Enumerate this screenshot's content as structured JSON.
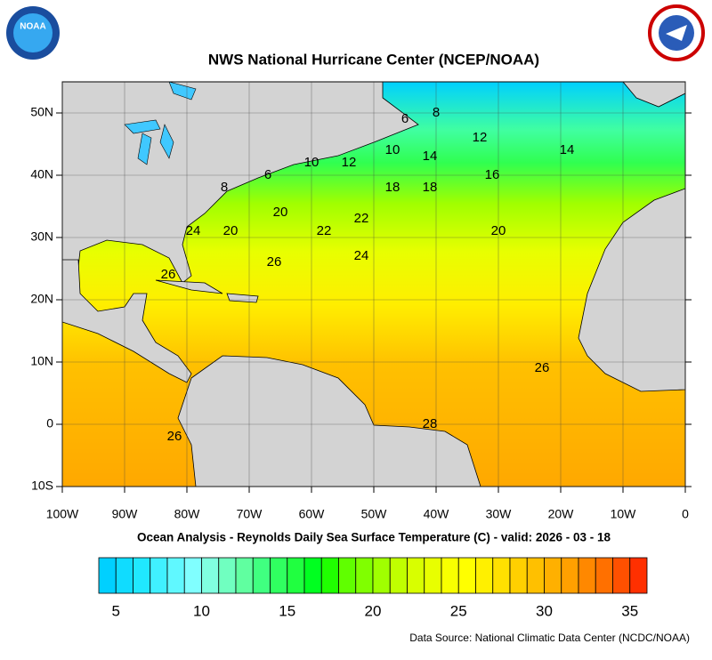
{
  "title": "NWS National Hurricane Center (NCEP/NOAA)",
  "logo_text": "NOAA",
  "map": {
    "lonlim": [
      -100,
      0
    ],
    "latlim": [
      -10,
      55
    ],
    "xticks": [
      {
        "value": -100,
        "label": "100W"
      },
      {
        "value": -90,
        "label": "90W"
      },
      {
        "value": -80,
        "label": "80W"
      },
      {
        "value": -70,
        "label": "70W"
      },
      {
        "value": -60,
        "label": "60W"
      },
      {
        "value": -50,
        "label": "50W"
      },
      {
        "value": -40,
        "label": "40W"
      },
      {
        "value": -30,
        "label": "30W"
      },
      {
        "value": -20,
        "label": "20W"
      },
      {
        "value": -10,
        "label": "10W"
      },
      0
    ],
    "yticks": [
      {
        "value": 50,
        "label": "50N"
      },
      {
        "value": 40,
        "label": "40N"
      },
      {
        "value": 30,
        "label": "30N"
      },
      {
        "value": 20,
        "label": "20N"
      },
      {
        "value": 10,
        "label": "10N"
      },
      0,
      {
        "value": -10,
        "label": "10S"
      }
    ],
    "grid": true,
    "contour_labels": [
      {
        "value": 6,
        "lon": -45,
        "lat": 49
      },
      {
        "value": 8,
        "lon": -40,
        "lat": 50
      },
      {
        "value": 12,
        "lon": -33,
        "lat": 46
      },
      {
        "value": 14,
        "lon": -19,
        "lat": 44
      },
      {
        "value": 10,
        "lon": -60,
        "lat": 42
      },
      {
        "value": 12,
        "lon": -54,
        "lat": 42
      },
      {
        "value": 10,
        "lon": -47,
        "lat": 44
      },
      {
        "value": 14,
        "lon": -41,
        "lat": 43
      },
      {
        "value": 16,
        "lon": -31,
        "lat": 40
      },
      {
        "value": 18,
        "lon": -47,
        "lat": 38
      },
      {
        "value": 18,
        "lon": -41,
        "lat": 38
      },
      {
        "value": 8,
        "lon": -74,
        "lat": 38
      },
      {
        "value": 6,
        "lon": -67,
        "lat": 40
      },
      {
        "value": 20,
        "lon": -65,
        "lat": 34
      },
      {
        "value": 22,
        "lon": -52,
        "lat": 33
      },
      {
        "value": 22,
        "lon": -58,
        "lat": 31
      },
      {
        "value": 20,
        "lon": -73,
        "lat": 31
      },
      {
        "value": 24,
        "lon": -79,
        "lat": 31
      },
      {
        "value": 20,
        "lon": -30,
        "lat": 31
      },
      {
        "value": 24,
        "lon": -52,
        "lat": 27
      },
      {
        "value": 26,
        "lon": -66,
        "lat": 26
      },
      {
        "value": 26,
        "lon": -83,
        "lat": 24
      },
      {
        "value": 26,
        "lon": -23,
        "lat": 9
      },
      {
        "value": 28,
        "lon": -41,
        "lat": 0
      },
      {
        "value": 26,
        "lon": -82,
        "lat": -2
      }
    ]
  },
  "subtitle": "Ocean Analysis - Reynolds Daily Sea Surface Temperature (C) - valid: 2026 - 03 - 18",
  "colorbar": {
    "range": [
      4,
      36
    ],
    "ticks": [
      5,
      10,
      15,
      20,
      25,
      30,
      35
    ],
    "colors": [
      "#00d0ff",
      "#10dcff",
      "#20e8ff",
      "#40f0ff",
      "#60f8ff",
      "#80ffff",
      "#80ffe0",
      "#70ffc0",
      "#60ffa0",
      "#40ff80",
      "#30ff60",
      "#20ff40",
      "#00ff20",
      "#20ff00",
      "#60ff00",
      "#80ff00",
      "#a0ff00",
      "#c0ff00",
      "#d8ff00",
      "#e8ff00",
      "#f8ff00",
      "#ffff00",
      "#fff000",
      "#ffe000",
      "#ffd000",
      "#ffc000",
      "#ffb000",
      "#ffa000",
      "#ff8800",
      "#ff7000",
      "#ff5000",
      "#ff3000"
    ]
  },
  "source": "Data Source: National Climatic Data Center (NCDC/NOAA)"
}
